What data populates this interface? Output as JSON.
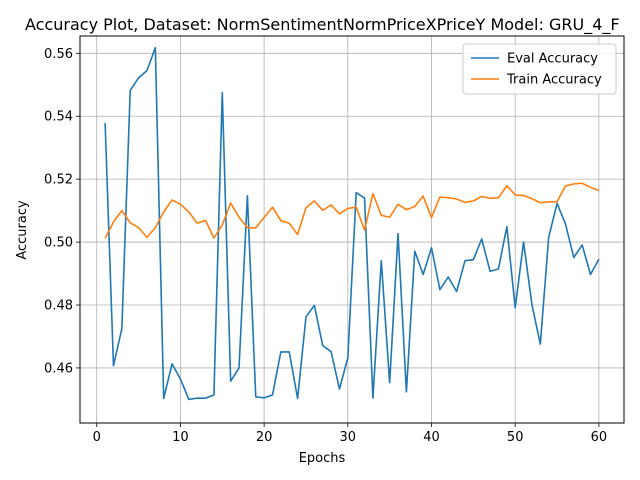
{
  "chart_data": {
    "type": "line",
    "title": "Accuracy Plot, Dataset: NormSentimentNormPriceXPriceY Model: GRU_4_F",
    "xlabel": "Epochs",
    "ylabel": "Accuracy",
    "xlim": [
      -2,
      63
    ],
    "ylim": [
      0.4425,
      0.5655
    ],
    "xticks": [
      0,
      10,
      20,
      30,
      40,
      50,
      60
    ],
    "yticks": [
      0.46,
      0.48,
      0.5,
      0.52,
      0.54,
      0.56
    ],
    "xtick_labels": [
      "0",
      "10",
      "20",
      "30",
      "40",
      "50",
      "60"
    ],
    "ytick_labels": [
      "0.46",
      "0.48",
      "0.50",
      "0.52",
      "0.54",
      "0.56"
    ],
    "grid": true,
    "legend_position": "top-right",
    "x": [
      1,
      2,
      3,
      4,
      5,
      6,
      7,
      8,
      9,
      10,
      11,
      12,
      13,
      14,
      15,
      16,
      17,
      18,
      19,
      20,
      21,
      22,
      23,
      24,
      25,
      26,
      27,
      28,
      29,
      30,
      31,
      32,
      33,
      34,
      35,
      36,
      37,
      38,
      39,
      40,
      41,
      42,
      43,
      44,
      45,
      46,
      47,
      48,
      49,
      50,
      51,
      52,
      53,
      54,
      55,
      56,
      57,
      58,
      59,
      60
    ],
    "series": [
      {
        "name": "Eval Accuracy",
        "color": "#1f77b4",
        "values": [
          0.5378,
          0.4607,
          0.4725,
          0.5482,
          0.5522,
          0.5545,
          0.5618,
          0.4503,
          0.4613,
          0.4565,
          0.45,
          0.4504,
          0.4504,
          0.4514,
          0.5475,
          0.4558,
          0.46,
          0.5147,
          0.4508,
          0.4505,
          0.4514,
          0.4651,
          0.4651,
          0.4503,
          0.4762,
          0.4799,
          0.4671,
          0.4652,
          0.4533,
          0.4632,
          0.5157,
          0.514,
          0.4504,
          0.4941,
          0.4553,
          0.5027,
          0.4524,
          0.4971,
          0.4897,
          0.4982,
          0.4849,
          0.4889,
          0.4843,
          0.4941,
          0.4944,
          0.501,
          0.4907,
          0.4915,
          0.5049,
          0.4791,
          0.5,
          0.4801,
          0.4676,
          0.5015,
          0.5123,
          0.5058,
          0.4951,
          0.4991,
          0.4897,
          0.4946
        ]
      },
      {
        "name": "Train Accuracy",
        "color": "#ff7f0e",
        "values": [
          0.5012,
          0.5064,
          0.51,
          0.5061,
          0.5046,
          0.5015,
          0.5046,
          0.5096,
          0.5134,
          0.512,
          0.5096,
          0.506,
          0.5069,
          0.5013,
          0.5054,
          0.5124,
          0.5079,
          0.5046,
          0.5045,
          0.5078,
          0.5111,
          0.5068,
          0.506,
          0.5024,
          0.5109,
          0.5131,
          0.5101,
          0.5118,
          0.509,
          0.5107,
          0.5111,
          0.5038,
          0.5154,
          0.5085,
          0.5079,
          0.512,
          0.5103,
          0.5113,
          0.5146,
          0.5078,
          0.5143,
          0.5141,
          0.5137,
          0.5126,
          0.5131,
          0.5145,
          0.5139,
          0.5141,
          0.5179,
          0.515,
          0.5148,
          0.5138,
          0.5125,
          0.5128,
          0.5128,
          0.5178,
          0.5185,
          0.5187,
          0.5174,
          0.5164
        ]
      }
    ]
  }
}
